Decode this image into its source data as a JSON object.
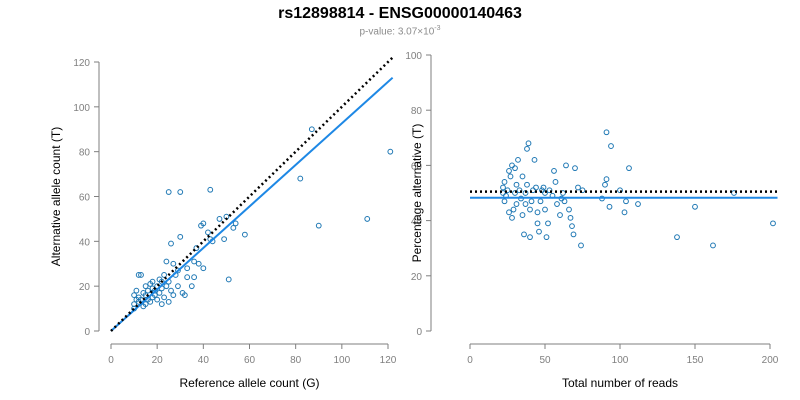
{
  "header": {
    "title": "rs12898814 - ENSG00000140463",
    "subtitle_prefix": "p-value: 3.07×10",
    "subtitle_exponent": "-3"
  },
  "colors": {
    "points": "#1f78b4",
    "fit_line": "#1e88e5",
    "reference_line": "#000000",
    "axis": "#7f7f7f"
  },
  "chart_data": [
    {
      "type": "scatter",
      "xlabel": "Reference allele count (G)",
      "ylabel": "Alternative allele count (T)",
      "xlim": [
        0,
        120
      ],
      "ylim": [
        0,
        120
      ],
      "xticks": [
        0,
        20,
        40,
        60,
        80,
        100,
        120
      ],
      "yticks": [
        0,
        20,
        40,
        60,
        80,
        100,
        120
      ],
      "points": [
        [
          10,
          10
        ],
        [
          10,
          12
        ],
        [
          11,
          14
        ],
        [
          10,
          16
        ],
        [
          11,
          18
        ],
        [
          12,
          13
        ],
        [
          12,
          15
        ],
        [
          13,
          14
        ],
        [
          12,
          25
        ],
        [
          13,
          25
        ],
        [
          14,
          11
        ],
        [
          14,
          17
        ],
        [
          15,
          12
        ],
        [
          15,
          16
        ],
        [
          15,
          20
        ],
        [
          16,
          14
        ],
        [
          16,
          18
        ],
        [
          17,
          13
        ],
        [
          17,
          21
        ],
        [
          18,
          15
        ],
        [
          18,
          19
        ],
        [
          18,
          22
        ],
        [
          19,
          16
        ],
        [
          19,
          18
        ],
        [
          20,
          14
        ],
        [
          20,
          20
        ],
        [
          21,
          17
        ],
        [
          21,
          23
        ],
        [
          22,
          12
        ],
        [
          22,
          19
        ],
        [
          22,
          22
        ],
        [
          23,
          25
        ],
        [
          23,
          15
        ],
        [
          24,
          20
        ],
        [
          24,
          31
        ],
        [
          25,
          22
        ],
        [
          25,
          13
        ],
        [
          26,
          18
        ],
        [
          26,
          39
        ],
        [
          27,
          30
        ],
        [
          27,
          16
        ],
        [
          28,
          25
        ],
        [
          29,
          20
        ],
        [
          29,
          27
        ],
        [
          30,
          42
        ],
        [
          31,
          17
        ],
        [
          32,
          16
        ],
        [
          33,
          24
        ],
        [
          33,
          28
        ],
        [
          35,
          20
        ],
        [
          36,
          24
        ],
        [
          36,
          31
        ],
        [
          37,
          37
        ],
        [
          38,
          30
        ],
        [
          39,
          47
        ],
        [
          40,
          28
        ],
        [
          40,
          48
        ],
        [
          42,
          44
        ],
        [
          43,
          41
        ],
        [
          44,
          40
        ],
        [
          47,
          50
        ],
        [
          49,
          41
        ],
        [
          50,
          51
        ],
        [
          51,
          23
        ],
        [
          53,
          46
        ],
        [
          54,
          48
        ],
        [
          58,
          43
        ],
        [
          25,
          62
        ],
        [
          30,
          62
        ],
        [
          43,
          63
        ],
        [
          82,
          68
        ],
        [
          87,
          90
        ],
        [
          90,
          47
        ],
        [
          111,
          50
        ],
        [
          121,
          80
        ]
      ],
      "fit_line": [
        [
          0,
          0
        ],
        [
          122,
          113
        ]
      ],
      "reference_line": [
        [
          0,
          0
        ],
        [
          122,
          122
        ]
      ]
    },
    {
      "type": "scatter",
      "xlabel": "Total number of reads",
      "ylabel": "Percentage alternative (T)",
      "xlim": [
        0,
        200
      ],
      "ylim": [
        0,
        100
      ],
      "xticks": [
        0,
        50,
        100,
        150,
        200
      ],
      "yticks": [
        0,
        20,
        40,
        60,
        80,
        100
      ],
      "points": [
        [
          22,
          50
        ],
        [
          22,
          52
        ],
        [
          23,
          47
        ],
        [
          23,
          54
        ],
        [
          24,
          49
        ],
        [
          25,
          51
        ],
        [
          26,
          58
        ],
        [
          26,
          43
        ],
        [
          27,
          56
        ],
        [
          28,
          60
        ],
        [
          28,
          41
        ],
        [
          29,
          44
        ],
        [
          30,
          59
        ],
        [
          30,
          50
        ],
        [
          31,
          46
        ],
        [
          31,
          53
        ],
        [
          32,
          62
        ],
        [
          33,
          51
        ],
        [
          34,
          48
        ],
        [
          35,
          42
        ],
        [
          35,
          56
        ],
        [
          36,
          35
        ],
        [
          37,
          50
        ],
        [
          37,
          46
        ],
        [
          38,
          66
        ],
        [
          38,
          53
        ],
        [
          39,
          68
        ],
        [
          40,
          34
        ],
        [
          40,
          44
        ],
        [
          41,
          47
        ],
        [
          42,
          51
        ],
        [
          43,
          62
        ],
        [
          44,
          52
        ],
        [
          45,
          43
        ],
        [
          45,
          39
        ],
        [
          46,
          36
        ],
        [
          47,
          47
        ],
        [
          48,
          51
        ],
        [
          49,
          52
        ],
        [
          50,
          50
        ],
        [
          50,
          44
        ],
        [
          51,
          34
        ],
        [
          52,
          39
        ],
        [
          53,
          51
        ],
        [
          55,
          49
        ],
        [
          56,
          58
        ],
        [
          57,
          54
        ],
        [
          58,
          46
        ],
        [
          60,
          42
        ],
        [
          61,
          48
        ],
        [
          62,
          50
        ],
        [
          63,
          47
        ],
        [
          64,
          60
        ],
        [
          66,
          44
        ],
        [
          67,
          41
        ],
        [
          68,
          38
        ],
        [
          69,
          35
        ],
        [
          70,
          59
        ],
        [
          72,
          52
        ],
        [
          74,
          31
        ],
        [
          75,
          51
        ],
        [
          88,
          48
        ],
        [
          90,
          53
        ],
        [
          91,
          55
        ],
        [
          91,
          72
        ],
        [
          93,
          45
        ],
        [
          94,
          67
        ],
        [
          100,
          51
        ],
        [
          103,
          43
        ],
        [
          104,
          47
        ],
        [
          106,
          59
        ],
        [
          112,
          46
        ],
        [
          138,
          34
        ],
        [
          150,
          45
        ],
        [
          162,
          31
        ],
        [
          176,
          50
        ],
        [
          202,
          39
        ]
      ],
      "fit_line": [
        [
          0,
          48.3
        ],
        [
          205,
          48.3
        ]
      ],
      "reference_line": [
        [
          0,
          50.5
        ],
        [
          205,
          50.5
        ]
      ]
    }
  ]
}
